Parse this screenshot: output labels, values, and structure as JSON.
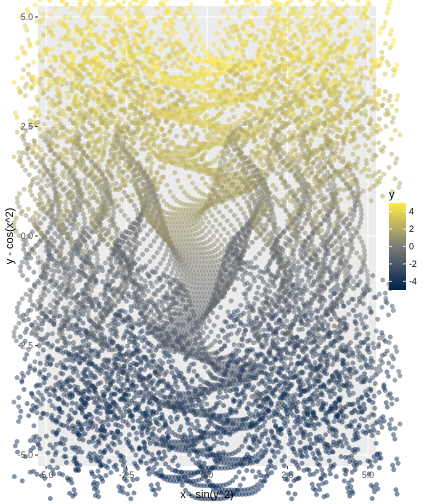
{
  "chart_data": {
    "type": "scatter",
    "title": "",
    "xlabel": "x - sin(y^2)",
    "ylabel": "y - cos(x^2)",
    "xlim": [
      -5.25,
      5.25
    ],
    "ylim": [
      -5.25,
      5.25
    ],
    "x_ticks": [
      "-5.0",
      "-2.5",
      "0.0",
      "2.5",
      "5.0"
    ],
    "x_tick_values": [
      -5,
      -2.5,
      0,
      2.5,
      5
    ],
    "y_ticks": [
      "-5.0",
      "-2.5",
      "0.0",
      "2.5",
      "5.0"
    ],
    "y_tick_values": [
      -5,
      -2.5,
      0,
      2.5,
      5
    ],
    "grid": true,
    "color_variable": "y",
    "legend": {
      "title": "y",
      "position": "right",
      "labels": [
        "4",
        "2",
        "0",
        "-2",
        "-4"
      ],
      "values": [
        4,
        2,
        0,
        -2,
        -4
      ],
      "range": [
        -5,
        5
      ]
    },
    "point_generator": {
      "description": "x in [-5,5] by 0.1, y in [-5,5] by 0.1; plotted (x - sin(y^2), y - cos(x^2)), colored by y",
      "x_from": -5,
      "x_to": 5,
      "x_step": 0.1,
      "y_from": -5,
      "y_to": 5,
      "y_step": 0.1
    },
    "point_alpha": 0.5
  },
  "colors": {
    "panel_background": "#ebebeb",
    "grid_major": "#ffffff",
    "grid_minor": "#f5f5f5",
    "low_color": "#00204d",
    "mid_color": "#7c7b78",
    "high_color": "#ffea46",
    "point_outline": "#999999"
  }
}
